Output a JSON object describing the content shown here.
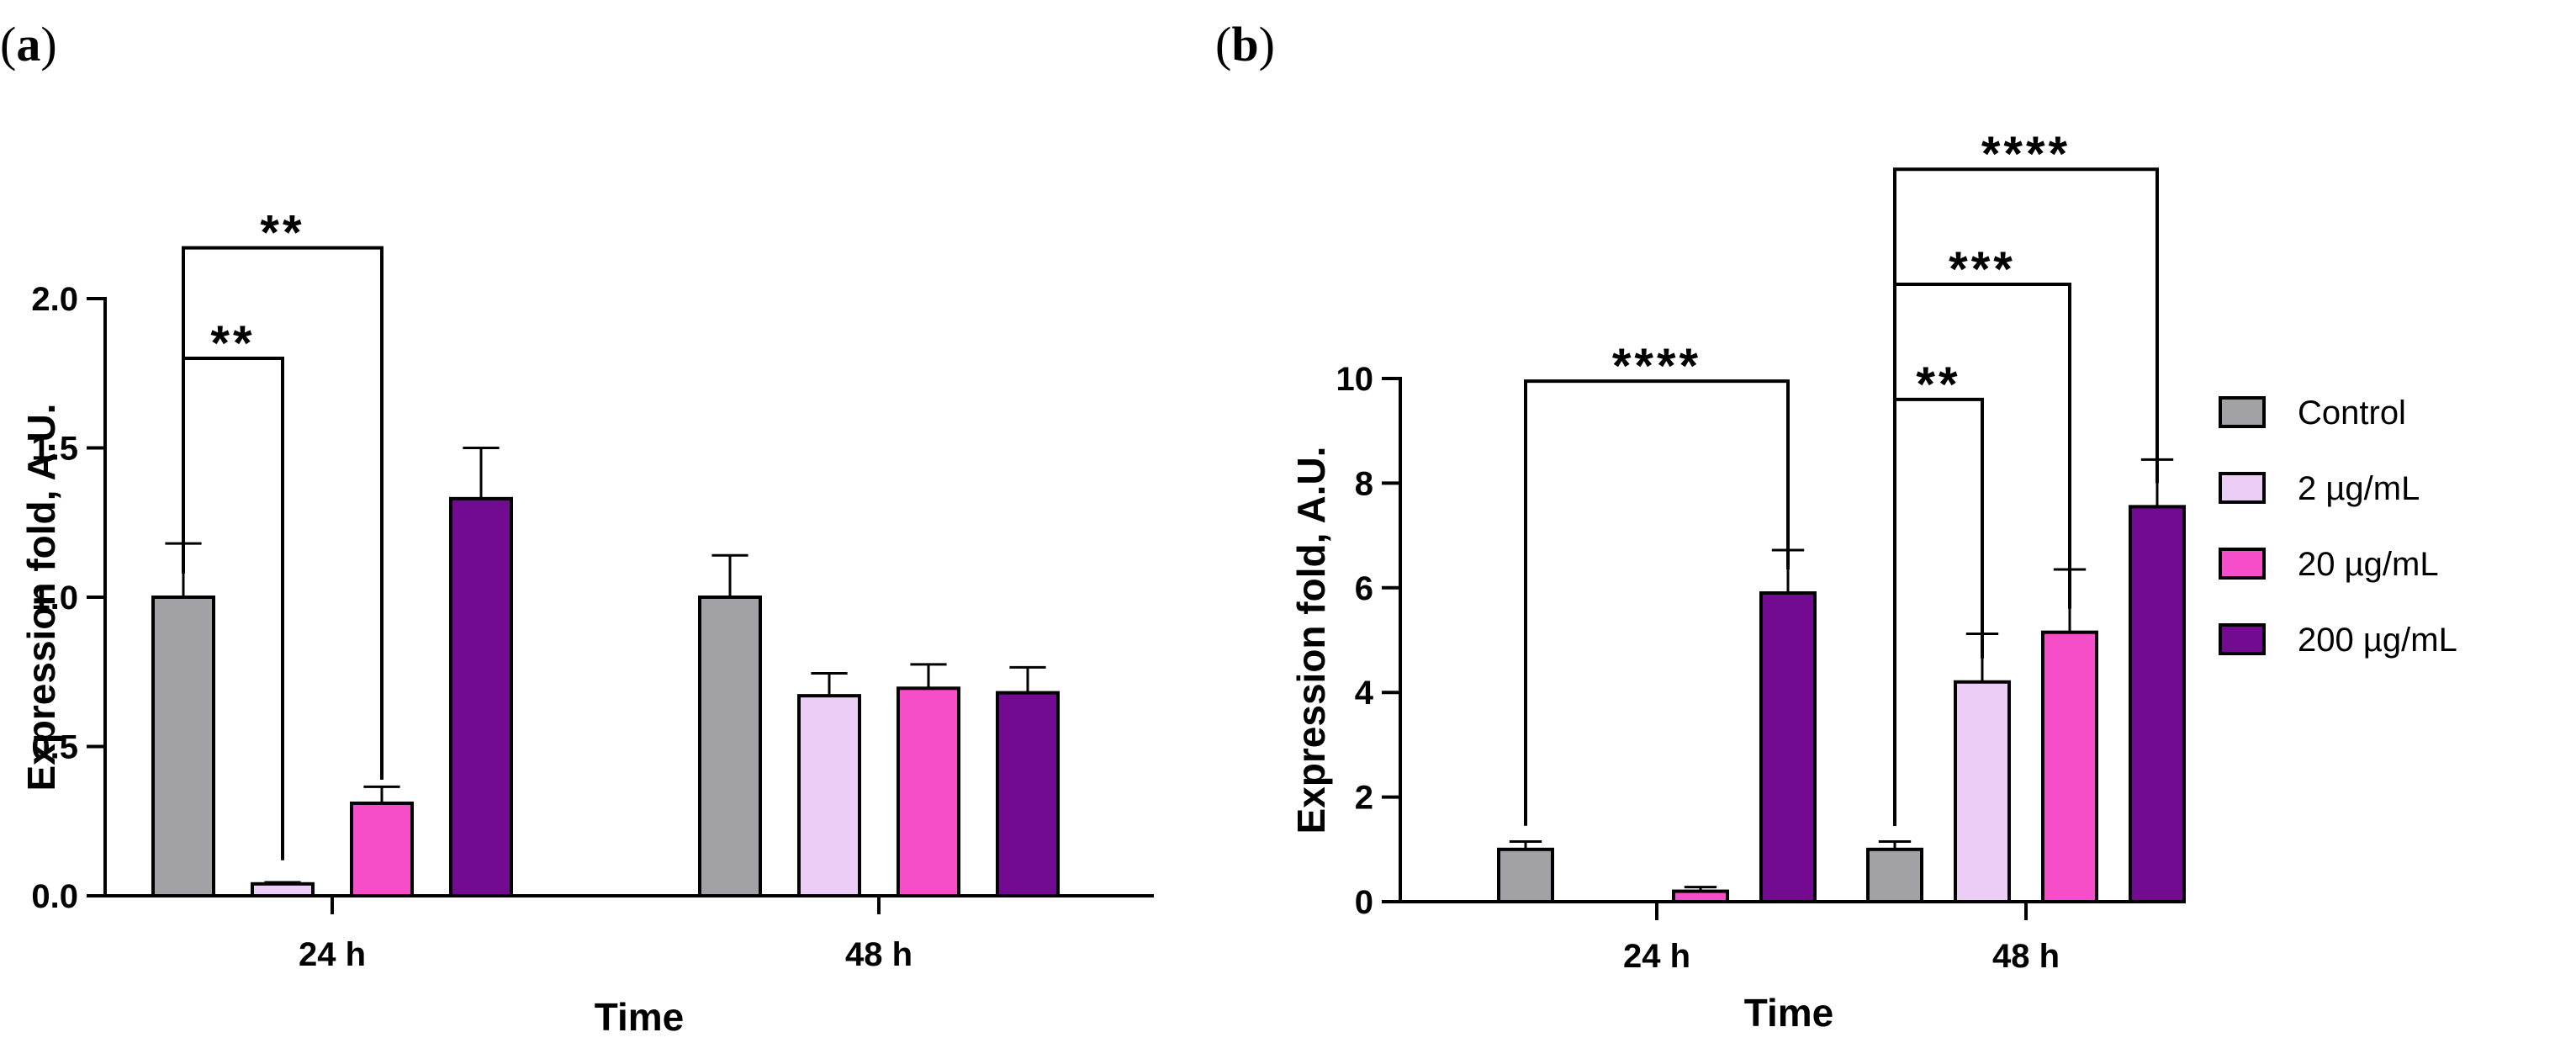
{
  "panels": [
    {
      "label_open": "(",
      "label_letter": "a",
      "label_close": ")"
    },
    {
      "label_open": "(",
      "label_letter": "b",
      "label_close": ")"
    }
  ],
  "chart_data": [
    {
      "type": "bar",
      "panel": "a",
      "title": "",
      "xlabel": "Time",
      "ylabel": "Expression fold, A.U.",
      "ylim": [
        0,
        2.0
      ],
      "yticks": [
        "0.0",
        "0.5",
        "1.0",
        "1.5",
        "2.0"
      ],
      "ytick_values": [
        0,
        0.5,
        1.0,
        1.5,
        2.0
      ],
      "categories": [
        "24 h",
        "48 h"
      ],
      "series": [
        {
          "name": "Control",
          "color": "#a2a1a6",
          "values": [
            1.0,
            1.0
          ],
          "errors": [
            0.18,
            0.14
          ]
        },
        {
          "name": "2 µg/mL",
          "color": "#ebcdf5",
          "values": [
            0.04,
            0.67
          ],
          "errors": [
            0.005,
            0.075
          ]
        },
        {
          "name": "20 µg/mL",
          "color": "#f54ec8",
          "values": [
            0.31,
            0.695
          ],
          "errors": [
            0.055,
            0.08
          ]
        },
        {
          "name": "200 µg/mL",
          "color": "#720b91",
          "values": [
            1.33,
            0.68
          ],
          "errors": [
            0.17,
            0.085
          ]
        }
      ],
      "annotations": [
        {
          "text": "**",
          "category": 0,
          "from_series": 0,
          "to_series": 1,
          "level": 1.8,
          "side_from": 1.0,
          "side_to": 0.04
        },
        {
          "text": "**",
          "category": 0,
          "from_series": 0,
          "to_series": 2,
          "level": 2.17,
          "side_from": 1.0,
          "side_to": 0.31
        }
      ]
    },
    {
      "type": "bar",
      "panel": "b",
      "title": "",
      "xlabel": "Time",
      "ylabel": "Expression fold, A.U.",
      "ylim": [
        0,
        10
      ],
      "yticks": [
        "0",
        "2",
        "4",
        "6",
        "8",
        "10"
      ],
      "ytick_values": [
        0,
        2,
        4,
        6,
        8,
        10
      ],
      "categories": [
        "24 h",
        "48 h"
      ],
      "series": [
        {
          "name": "Control",
          "color": "#a2a1a6",
          "values": [
            1.0,
            1.0
          ],
          "errors": [
            0.15,
            0.15
          ]
        },
        {
          "name": "2 µg/mL",
          "color": "#ebcdf5",
          "values": [
            0.0,
            4.2
          ],
          "errors": [
            0.0,
            0.92
          ]
        },
        {
          "name": "20 µg/mL",
          "color": "#f54ec8",
          "values": [
            0.2,
            5.15
          ],
          "errors": [
            0.08,
            1.2
          ]
        },
        {
          "name": "200 µg/mL",
          "color": "#720b91",
          "values": [
            5.9,
            7.55
          ],
          "errors": [
            0.82,
            0.9
          ]
        }
      ],
      "annotations": [
        {
          "text": "****",
          "category": 0,
          "from_series": 0,
          "to_series": 3,
          "level": 9.95,
          "side_from": 1.0,
          "side_to": 5.9
        },
        {
          "text": "**",
          "category": 1,
          "from_series": 0,
          "to_series": 1,
          "level": 9.6,
          "side_from": 1.0,
          "side_to": 4.2
        },
        {
          "text": "***",
          "category": 1,
          "from_series": 0,
          "to_series": 2,
          "level": 11.8,
          "side_from": 1.0,
          "side_to": 5.15
        },
        {
          "text": "****",
          "category": 1,
          "from_series": 0,
          "to_series": 3,
          "level": 14.0,
          "side_from": 1.0,
          "side_to": 7.55
        }
      ]
    }
  ],
  "legend": {
    "items": [
      "Control",
      "2 µg/mL",
      "20 µg/mL",
      "200 µg/mL"
    ],
    "colors": [
      "#a2a1a6",
      "#ebcdf5",
      "#f54ec8",
      "#720b91"
    ],
    "placement": "right"
  }
}
